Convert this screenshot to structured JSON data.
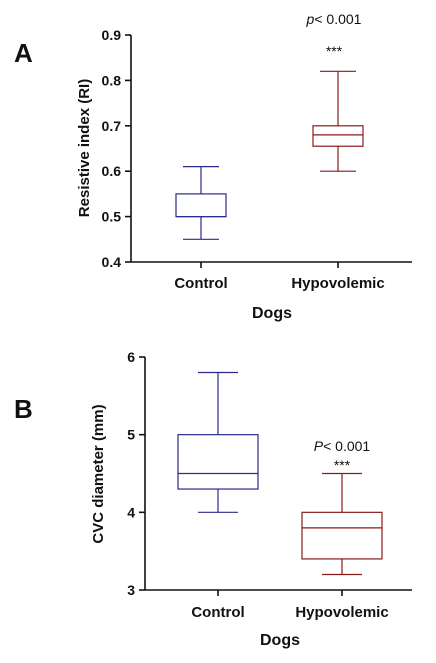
{
  "chart_data": [
    {
      "type": "box",
      "panel_label": "A",
      "title": "",
      "xlabel": "Dogs",
      "ylabel": "Resistive index (RI)",
      "ylim": [
        0.4,
        0.9
      ],
      "yticks": [
        "0.4",
        "0.5",
        "0.6",
        "0.7",
        "0.8",
        "0.9"
      ],
      "categories": [
        "Control",
        "Hypovolemic"
      ],
      "boxes": [
        {
          "category": "Control",
          "min": 0.45,
          "q1": 0.5,
          "median": 0.5,
          "q3": 0.55,
          "max": 0.61,
          "color": "#2a2a8c"
        },
        {
          "category": "Hypovolemic",
          "min": 0.6,
          "q1": 0.655,
          "median": 0.68,
          "q3": 0.7,
          "max": 0.82,
          "color": "#8b1a1a"
        }
      ],
      "annotations": {
        "p_prefix": "p",
        "p_rest": "< 0.001",
        "stars": "***"
      },
      "grid": false
    },
    {
      "type": "box",
      "panel_label": "B",
      "title": "",
      "xlabel": "Dogs",
      "ylabel": "CVC diameter (mm)",
      "ylim": [
        3,
        6
      ],
      "yticks": [
        "3",
        "4",
        "5",
        "6"
      ],
      "categories": [
        "Control",
        "Hypovolemic"
      ],
      "boxes": [
        {
          "category": "Control",
          "min": 4.0,
          "q1": 4.3,
          "median": 4.5,
          "q3": 5.0,
          "max": 5.8,
          "color": "#2a2a8c"
        },
        {
          "category": "Hypovolemic",
          "min": 3.2,
          "q1": 3.4,
          "median": 3.8,
          "q3": 4.0,
          "max": 4.5,
          "color": "#8b1a1a"
        }
      ],
      "annotations": {
        "p_prefix": "P",
        "p_rest": "< 0.001",
        "stars": "***"
      },
      "grid": false
    }
  ]
}
